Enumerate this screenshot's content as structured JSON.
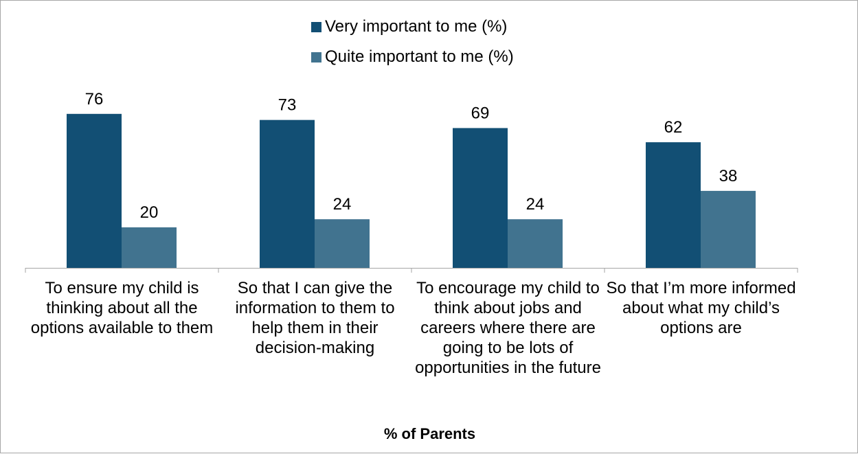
{
  "chart_data": {
    "type": "bar",
    "categories": [
      "To ensure my child is thinking about all the options available to them",
      "So that I can give the information to them to help them in their decision-making",
      "To encourage my child to think about jobs and careers where there are going to be lots of opportunities in the future",
      "So that I’m more informed about what my child’s options are"
    ],
    "series": [
      {
        "name": "Very important to me (%)",
        "values": [
          76,
          73,
          69,
          62
        ],
        "color": "#124f74"
      },
      {
        "name": "Quite important to me (%)",
        "values": [
          20,
          24,
          24,
          38
        ],
        "color": "#41738f"
      }
    ],
    "xlabel": "% of Parents",
    "ylabel": "",
    "ylim": [
      0,
      100
    ],
    "grid": false,
    "legend_position": "top-center"
  }
}
